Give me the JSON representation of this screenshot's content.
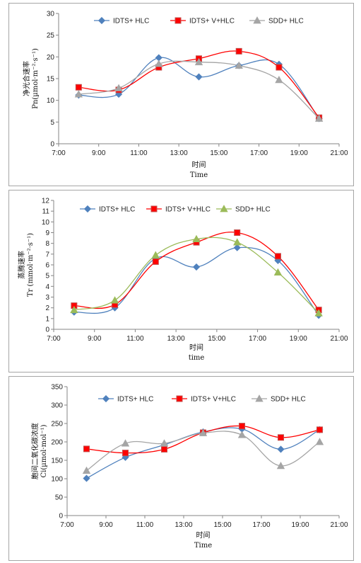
{
  "chart_data": [
    {
      "type": "line",
      "ylabel_line1": "净光合速率",
      "ylabel_line2": "Pn(µmol·m⁻²·s⁻¹)",
      "xlabel_line1": "时间",
      "xlabel_line2": "Time",
      "xlim": [
        "7:00",
        "21:00"
      ],
      "x_ticks": [
        "7:00",
        "9:00",
        "11:00",
        "13:00",
        "15:00",
        "17:00",
        "19:00",
        "21:00"
      ],
      "ylim": [
        0,
        30
      ],
      "y_ticks": [
        0,
        5,
        10,
        15,
        20,
        25,
        30
      ],
      "x": [
        "8:00",
        "10:00",
        "12:00",
        "14:00",
        "16:00",
        "18:00",
        "20:00"
      ],
      "series": [
        {
          "name": "IDTS+ HLC",
          "color": "#4f81bd",
          "marker": "diamond",
          "values": [
            11.2,
            11.4,
            19.8,
            15.4,
            18.0,
            18.3,
            5.8
          ]
        },
        {
          "name": "IDTS+ V+HLC",
          "color": "#ff0000",
          "marker": "square",
          "values": [
            13.0,
            12.4,
            17.6,
            19.6,
            21.3,
            17.6,
            6.0
          ]
        },
        {
          "name": "SDD+ HLC",
          "color": "#a5a5a5",
          "marker": "triangle",
          "values": [
            11.4,
            12.8,
            18.4,
            18.8,
            18.0,
            14.7,
            5.8
          ]
        }
      ],
      "legend_position": "top"
    },
    {
      "type": "line",
      "ylabel_line1": "蒸腾速率",
      "ylabel_line2": "Tr (mmol·m⁻²·s⁻¹)",
      "xlabel_line1": "时间",
      "xlabel_line2": "time",
      "xlim": [
        "7:00",
        "21:00"
      ],
      "x_ticks": [
        "7:00",
        "9:00",
        "11:00",
        "13:00",
        "15:00",
        "17:00",
        "19:00",
        "21:00"
      ],
      "ylim": [
        0,
        12
      ],
      "y_ticks": [
        0,
        1,
        2,
        3,
        4,
        5,
        6,
        7,
        8,
        9,
        10,
        11,
        12
      ],
      "x": [
        "8:00",
        "10:00",
        "12:00",
        "14:00",
        "16:00",
        "18:00",
        "20:00"
      ],
      "series": [
        {
          "name": "IDTS+ HLC",
          "color": "#4f81bd",
          "marker": "diamond",
          "values": [
            1.6,
            2.0,
            6.6,
            5.8,
            7.6,
            6.4,
            1.3
          ]
        },
        {
          "name": "IDTS+ V+HLC",
          "color": "#ff0000",
          "marker": "square",
          "values": [
            2.2,
            2.3,
            6.3,
            8.1,
            9.0,
            6.8,
            1.8
          ]
        },
        {
          "name": "SDD+ HLC",
          "color": "#9bbb59",
          "marker": "triangle",
          "values": [
            1.8,
            2.7,
            6.9,
            8.4,
            8.1,
            5.3,
            1.5
          ]
        }
      ],
      "legend_position": "top"
    },
    {
      "type": "line",
      "ylabel_line1": "胞间二氧化碳浓度",
      "ylabel_line2": "Ci(µmol·mol⁻¹)",
      "xlabel_line1": "时间",
      "xlabel_line2": "Time",
      "xlim": [
        "7:00",
        "21:00"
      ],
      "x_ticks": [
        "7:00",
        "9:00",
        "11:00",
        "13:00",
        "15:00",
        "17:00",
        "19:00",
        "21:00"
      ],
      "ylim": [
        0,
        350
      ],
      "y_ticks": [
        0,
        50,
        100,
        150,
        200,
        250,
        300,
        350
      ],
      "x": [
        "8:00",
        "10:00",
        "12:00",
        "14:00",
        "16:00",
        "18:00",
        "20:00"
      ],
      "series": [
        {
          "name": "IDTS+ HLC",
          "color": "#4f81bd",
          "marker": "diamond",
          "values": [
            101,
            158,
            192,
            227,
            235,
            180,
            233
          ]
        },
        {
          "name": "IDTS+ V+HLC",
          "color": "#ff0000",
          "marker": "square",
          "values": [
            181,
            170,
            180,
            225,
            243,
            212,
            233
          ]
        },
        {
          "name": "SDD+ HLC",
          "color": "#a5a5a5",
          "marker": "triangle",
          "values": [
            122,
            196,
            196,
            224,
            219,
            135,
            200
          ]
        }
      ],
      "legend_position": "top"
    }
  ]
}
